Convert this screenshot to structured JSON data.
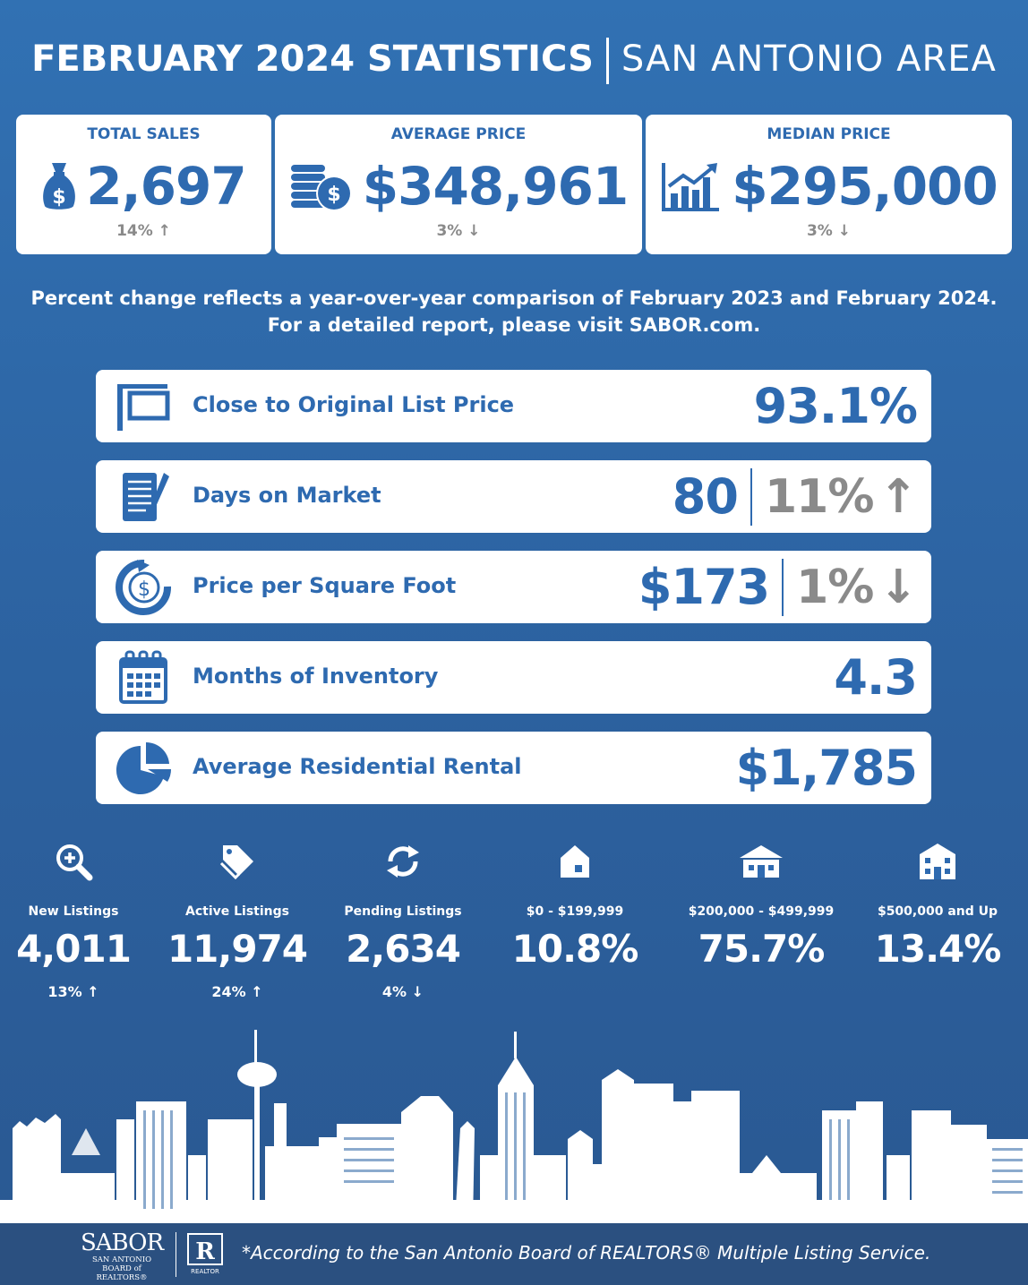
{
  "header": {
    "title_bold": "FEBRUARY 2024 STATISTICS",
    "title_light": "SAN ANTONIO AREA"
  },
  "top_cards": [
    {
      "label": "TOTAL SALES",
      "value": "2,697",
      "change": "14%",
      "direction": "up",
      "icon": "money-bag-icon"
    },
    {
      "label": "AVERAGE PRICE",
      "value": "$348,961",
      "change": "3%",
      "direction": "down",
      "icon": "coin-stack-icon"
    },
    {
      "label": "MEDIAN PRICE",
      "value": "$295,000",
      "change": "3%",
      "direction": "down",
      "icon": "growth-chart-icon"
    }
  ],
  "note": {
    "line1": "Percent change reflects a year-over-year comparison of February 2023 and February 2024.",
    "line2": "For a detailed report, please visit SABOR.com."
  },
  "bars": [
    {
      "label": "Close to Original List Price",
      "value": "93.1%",
      "icon": "sign-icon"
    },
    {
      "label": "Days on Market",
      "value": "80",
      "change": "11%",
      "direction": "up",
      "icon": "notepad-icon"
    },
    {
      "label": "Price per Square Foot",
      "value": "$173",
      "change": "1%",
      "direction": "down",
      "icon": "dollar-cycle-icon"
    },
    {
      "label": "Months of Inventory",
      "value": "4.3",
      "icon": "calendar-icon"
    },
    {
      "label": "Average Residential Rental",
      "value": "$1,785",
      "icon": "pie-chart-icon"
    }
  ],
  "stats": [
    {
      "label": "New Listings",
      "value": "4,011",
      "change": "13%",
      "direction": "up",
      "icon": "magnifier-plus-icon"
    },
    {
      "label": "Active Listings",
      "value": "11,974",
      "change": "24%",
      "direction": "up",
      "icon": "price-tag-icon"
    },
    {
      "label": "Pending Listings",
      "value": "2,634",
      "change": "4%",
      "direction": "down",
      "icon": "refresh-arrows-icon"
    },
    {
      "label": "$0 - $199,999",
      "value": "10.8%",
      "icon": "small-house-icon"
    },
    {
      "label": "$200,000 - $499,999",
      "value": "75.7%",
      "icon": "medium-house-icon"
    },
    {
      "label": "$500,000 and Up",
      "value": "13.4%",
      "icon": "large-house-icon"
    }
  ],
  "footer": {
    "logo_main": "SABOR",
    "logo_sub1": "SAN ANTONIO",
    "logo_sub2": "BOARD of REALTORS®",
    "realtor_mark": "R",
    "realtor_text": "REALTOR",
    "text": "*According to the San Antonio Board of REALTORS® Multiple Listing Service."
  },
  "colors": {
    "brand_blue": "#2e6ab0",
    "change_gray": "#8a8a8a",
    "footer_bg": "#2b5080"
  }
}
